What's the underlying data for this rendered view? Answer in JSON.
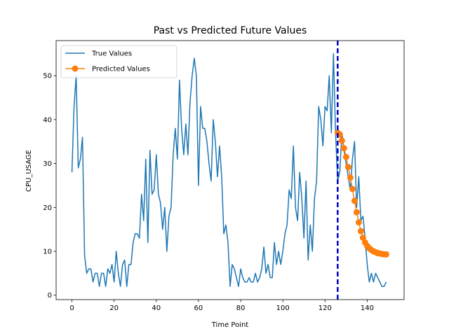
{
  "chart_data": {
    "type": "line",
    "title": "Past vs Predicted Future Values",
    "xlabel": "Time Point",
    "ylabel": "CPU_USAGE",
    "xlim": [
      -7.5,
      157.5
    ],
    "ylim": [
      -1,
      58
    ],
    "xticks": [
      0,
      20,
      40,
      60,
      80,
      100,
      120,
      140
    ],
    "yticks": [
      0,
      10,
      20,
      30,
      40,
      50
    ],
    "grid": false,
    "legend": "upper left",
    "vline": {
      "x": 126,
      "color": "#0000cc",
      "style": "dashed"
    },
    "series": [
      {
        "name": "True Values",
        "color": "#1f77b4",
        "marker": "none",
        "x_start": 0,
        "values": [
          28,
          43,
          50,
          29,
          31,
          36,
          9,
          5,
          6,
          6,
          3,
          5,
          5,
          2,
          5,
          5,
          2,
          6,
          5,
          7,
          3,
          10,
          5,
          2,
          7,
          8,
          2,
          7,
          7,
          12,
          14,
          14,
          13,
          23,
          17,
          31,
          12,
          33,
          23,
          24,
          32,
          23,
          21,
          15,
          20,
          10,
          18,
          20,
          32,
          38,
          31,
          49,
          38,
          32,
          39,
          32,
          44,
          50,
          54,
          50,
          25,
          43,
          38,
          38,
          35,
          30,
          26,
          40,
          35,
          27,
          34,
          27,
          14,
          16,
          12,
          2,
          7,
          6,
          4,
          2,
          6,
          4,
          3,
          3,
          4,
          3,
          3,
          5,
          3,
          4,
          6,
          11,
          5,
          7,
          4,
          4,
          12,
          7,
          10,
          7,
          10,
          14,
          16,
          24,
          22,
          34,
          20,
          17,
          28,
          22,
          13,
          26,
          8,
          16,
          10,
          22,
          26,
          43,
          40,
          34,
          43,
          42,
          50,
          37,
          55,
          37,
          26,
          28,
          37,
          33,
          30,
          27,
          24,
          31,
          35,
          20,
          27,
          17,
          18,
          13,
          7,
          3,
          5,
          3,
          5,
          4,
          3,
          2,
          2,
          3
        ]
      },
      {
        "name": "Predicted Values",
        "color": "#ff7f0e",
        "marker": "circle",
        "x": [
          126,
          127,
          128,
          129,
          130,
          131,
          132,
          133,
          134,
          135,
          136,
          137,
          138,
          139,
          140,
          141,
          142,
          143,
          144,
          145,
          146,
          147,
          148,
          149
        ],
        "values": [
          37,
          36.6,
          35.2,
          33.5,
          31.5,
          29.2,
          26.8,
          24.2,
          21.5,
          18.9,
          16.6,
          14.6,
          13.1,
          12,
          11.2,
          10.7,
          10.3,
          10,
          9.8,
          9.6,
          9.5,
          9.4,
          9.3,
          9.3
        ]
      }
    ]
  }
}
